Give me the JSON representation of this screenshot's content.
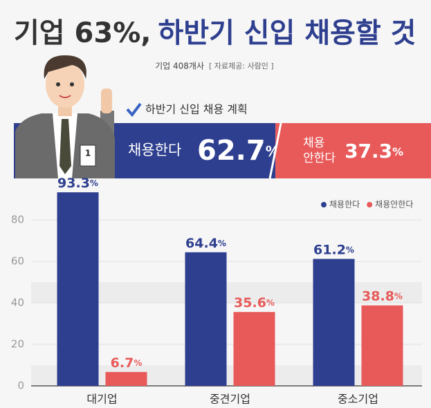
{
  "header": {
    "title_lead": "기업 63%,",
    "title_rest": "하반기 신입 채용할 것",
    "subtitle": "기업 408개사",
    "source": "[ 자료제공: 사람인 ]"
  },
  "summary": {
    "label": "하반기 신입 채용 계획",
    "items": [
      {
        "name": [
          "채용한다"
        ],
        "value": 62.7,
        "value_label": "62.7%",
        "color": "#2e3f8f"
      },
      {
        "name": [
          "채용",
          "안한다"
        ],
        "value": 37.3,
        "value_label": "37.3%",
        "color": "#e85a5a"
      }
    ]
  },
  "badge": "1",
  "chart_data": {
    "type": "bar",
    "categories": [
      "대기업",
      "중견기업",
      "중소기업"
    ],
    "series": [
      {
        "name": "채용한다",
        "color": "#2e3f8f",
        "values": [
          93.3,
          64.4,
          61.2
        ],
        "value_labels": [
          "93.3%",
          "64.4%",
          "61.2%"
        ]
      },
      {
        "name": "채용안한다",
        "color": "#e85a5a",
        "values": [
          6.7,
          35.6,
          38.8
        ],
        "value_labels": [
          "6.7%",
          "35.6%",
          "38.8%"
        ]
      }
    ],
    "ylim": [
      0,
      100
    ],
    "yticks": [
      0,
      20,
      40,
      60,
      80
    ],
    "grid": true,
    "legend": "top-right"
  }
}
